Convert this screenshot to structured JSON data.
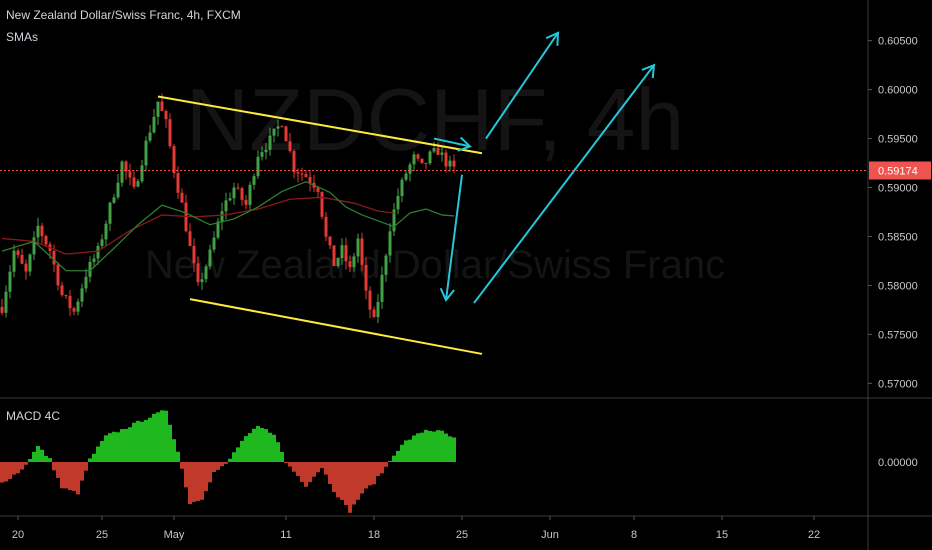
{
  "header": {
    "title": "New Zealand Dollar/Swiss Franc, 4h, FXCM",
    "indicator": "SMAs",
    "macd_label": "MACD 4C"
  },
  "watermark": {
    "symbol": "NZDCHF, 4h",
    "name": "New Zealand Dollar/Swiss Franc"
  },
  "colors": {
    "background": "#000000",
    "up": "#26a69a",
    "up_candle": "#43a047",
    "down": "#e53935",
    "sma_fast": "#2e7d32",
    "sma_slow": "#8b1a1a",
    "trendline": "#ffeb3b",
    "arrow": "#26c6da",
    "price_tag": "#ef5350",
    "macd_pos": "#1fb81f",
    "macd_neg": "#c0392b"
  },
  "chart_data": {
    "type": "candlestick",
    "price_axis": {
      "ticks": [
        "0.60500",
        "0.60000",
        "0.59500",
        "0.59000",
        "0.58500",
        "0.58000",
        "0.57500",
        "0.57000"
      ],
      "range": [
        0.5685,
        0.6065
      ],
      "current_price": "0.59174"
    },
    "macd_axis": {
      "ticks": [
        "0.00000"
      ]
    },
    "time_axis": {
      "ticks": [
        "20",
        "25",
        "May",
        "11",
        "18",
        "25",
        "Jun",
        "8",
        "15",
        "22"
      ]
    },
    "price_path": [
      [
        0,
        0.5778
      ],
      [
        3,
        0.5835
      ],
      [
        6,
        0.5812
      ],
      [
        9,
        0.586
      ],
      [
        12,
        0.5836
      ],
      [
        15,
        0.579
      ],
      [
        18,
        0.5773
      ],
      [
        21,
        0.5812
      ],
      [
        24,
        0.5835
      ],
      [
        27,
        0.588
      ],
      [
        30,
        0.5925
      ],
      [
        33,
        0.5896
      ],
      [
        36,
        0.5945
      ],
      [
        39,
        0.5988
      ],
      [
        41,
        0.5965
      ],
      [
        43,
        0.5918
      ],
      [
        45,
        0.5882
      ],
      [
        47,
        0.5838
      ],
      [
        49,
        0.5798
      ],
      [
        52,
        0.5832
      ],
      [
        55,
        0.5878
      ],
      [
        58,
        0.59
      ],
      [
        61,
        0.5882
      ],
      [
        64,
        0.5935
      ],
      [
        67,
        0.5948
      ],
      [
        70,
        0.5968
      ],
      [
        73,
        0.592
      ],
      [
        76,
        0.5912
      ],
      [
        79,
        0.59
      ],
      [
        81,
        0.5848
      ],
      [
        83,
        0.5822
      ],
      [
        85,
        0.5836
      ],
      [
        87,
        0.5815
      ],
      [
        89,
        0.5848
      ],
      [
        91,
        0.579
      ],
      [
        93,
        0.5762
      ],
      [
        95,
        0.5808
      ],
      [
        97,
        0.586
      ],
      [
        99,
        0.5892
      ],
      [
        101,
        0.5915
      ],
      [
        103,
        0.593
      ],
      [
        105,
        0.592
      ],
      [
        107,
        0.5932
      ],
      [
        109,
        0.5938
      ],
      [
        111,
        0.5926
      ],
      [
        113,
        0.5918
      ]
    ],
    "sma_fast": [
      [
        0,
        0.5835
      ],
      [
        8,
        0.5845
      ],
      [
        16,
        0.5815
      ],
      [
        22,
        0.5815
      ],
      [
        28,
        0.5838
      ],
      [
        34,
        0.5862
      ],
      [
        40,
        0.5882
      ],
      [
        46,
        0.5874
      ],
      [
        52,
        0.5862
      ],
      [
        58,
        0.5868
      ],
      [
        64,
        0.588
      ],
      [
        70,
        0.5896
      ],
      [
        76,
        0.5906
      ],
      [
        82,
        0.5895
      ],
      [
        86,
        0.588
      ],
      [
        90,
        0.5872
      ],
      [
        94,
        0.5866
      ],
      [
        98,
        0.586
      ],
      [
        102,
        0.5874
      ],
      [
        106,
        0.5878
      ],
      [
        110,
        0.5872
      ],
      [
        113,
        0.5871
      ]
    ],
    "sma_slow": [
      [
        0,
        0.5848
      ],
      [
        8,
        0.5845
      ],
      [
        16,
        0.5832
      ],
      [
        24,
        0.5835
      ],
      [
        32,
        0.5856
      ],
      [
        40,
        0.5872
      ],
      [
        48,
        0.587
      ],
      [
        56,
        0.5872
      ],
      [
        64,
        0.5878
      ],
      [
        72,
        0.5888
      ],
      [
        80,
        0.589
      ],
      [
        88,
        0.5884
      ],
      [
        94,
        0.5876
      ],
      [
        98,
        0.5874
      ]
    ],
    "macd_hist_path": [
      [
        0,
        -0.4
      ],
      [
        5,
        -0.15
      ],
      [
        9,
        0.3
      ],
      [
        12,
        0.05
      ],
      [
        15,
        -0.5
      ],
      [
        19,
        -0.6
      ],
      [
        22,
        0.05
      ],
      [
        26,
        0.5
      ],
      [
        30,
        0.62
      ],
      [
        35,
        0.8
      ],
      [
        41,
        1.0
      ],
      [
        44,
        0.2
      ],
      [
        47,
        -0.8
      ],
      [
        50,
        -0.7
      ],
      [
        53,
        -0.2
      ],
      [
        56,
        -0.05
      ],
      [
        60,
        0.4
      ],
      [
        64,
        0.68
      ],
      [
        68,
        0.55
      ],
      [
        71,
        0.0
      ],
      [
        76,
        -0.45
      ],
      [
        80,
        -0.1
      ],
      [
        83,
        -0.55
      ],
      [
        87,
        -0.95
      ],
      [
        90,
        -0.6
      ],
      [
        93,
        -0.4
      ],
      [
        96,
        -0.1
      ],
      [
        98,
        0.15
      ],
      [
        101,
        0.4
      ],
      [
        106,
        0.62
      ],
      [
        110,
        0.58
      ],
      [
        113,
        0.45
      ]
    ],
    "trendlines": [
      {
        "from": [
          39,
          0.5993
        ],
        "to": [
          120,
          0.5935
        ]
      },
      {
        "from": [
          47,
          0.5786
        ],
        "to": [
          120,
          0.573
        ]
      }
    ],
    "arrows": [
      {
        "from": [
          115,
          0.5913
        ],
        "to": [
          111,
          0.5785
        ]
      },
      {
        "from": [
          121,
          0.595
        ],
        "to": [
          139,
          0.6058
        ]
      },
      {
        "from": [
          118,
          0.5782
        ],
        "to": [
          163,
          0.6025
        ]
      },
      {
        "from": [
          108,
          0.595
        ],
        "to": [
          117,
          0.5942
        ]
      }
    ]
  }
}
